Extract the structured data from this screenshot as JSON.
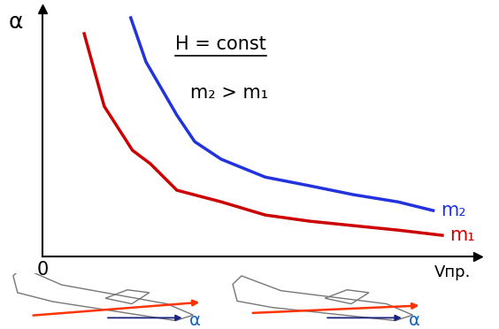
{
  "chart_data": {
    "type": "line",
    "x_label": "Vпр.",
    "y_label": "α",
    "xlim": [
      0,
      10
    ],
    "ylim": [
      0,
      10
    ],
    "xticks": [
      0
    ],
    "yticks": [],
    "tick_labels": "x",
    "grid": false,
    "annotations": [
      "H = const",
      "m₂ > m₁"
    ],
    "icon_labels": [
      "α",
      "α"
    ],
    "series": [
      {
        "name": "m₁",
        "color": "#cc0000",
        "x": [
          0.96,
          1.42,
          2.07,
          2.48,
          3.09,
          4.11,
          5.12,
          6.14,
          7.15,
          8.17,
          9.19
        ],
        "values": [
          9.0,
          6.07,
          4.29,
          3.75,
          2.68,
          2.21,
          1.68,
          1.43,
          1.25,
          1.07,
          0.86
        ]
      },
      {
        "name": "m₂",
        "color": "#2233dd",
        "x": [
          2.03,
          2.38,
          3.09,
          3.5,
          4.11,
          5.12,
          6.14,
          7.15,
          8.17,
          8.98
        ],
        "values": [
          9.64,
          7.86,
          5.71,
          4.64,
          3.93,
          3.21,
          2.86,
          2.5,
          2.21,
          1.86
        ]
      }
    ]
  }
}
